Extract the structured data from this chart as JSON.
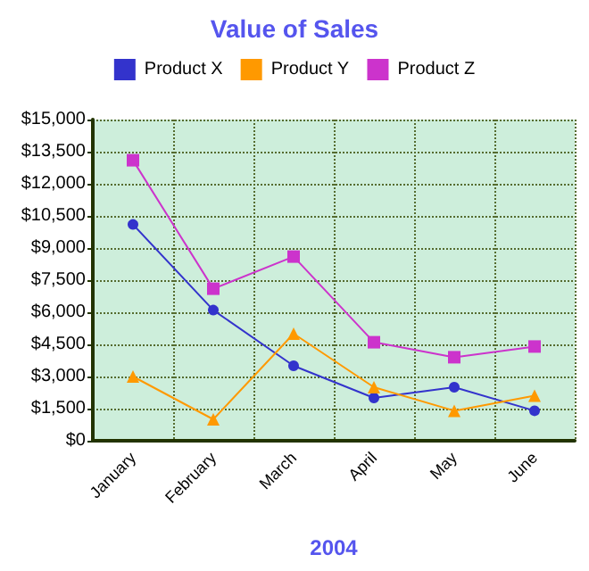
{
  "chart_data": {
    "type": "line",
    "title": "Value of Sales",
    "xlabel": "2004",
    "categories": [
      "January",
      "February",
      "March",
      "April",
      "May",
      "June"
    ],
    "series": [
      {
        "name": "Product X",
        "color": "#3333cc",
        "marker": "circle",
        "values": [
          10100,
          6100,
          3500,
          2000,
          2500,
          1400
        ]
      },
      {
        "name": "Product Y",
        "color": "#ff9900",
        "marker": "triangle",
        "values": [
          3000,
          1000,
          5000,
          2500,
          1400,
          2100
        ]
      },
      {
        "name": "Product Z",
        "color": "#cc33cc",
        "marker": "square",
        "values": [
          13100,
          7100,
          8600,
          4600,
          3900,
          4400
        ]
      }
    ],
    "ylim": [
      0,
      15000
    ],
    "yticks": [
      {
        "value": 0,
        "label": "$0"
      },
      {
        "value": 1500,
        "label": "$1,500"
      },
      {
        "value": 3000,
        "label": "$3,000"
      },
      {
        "value": 4500,
        "label": "$4,500"
      },
      {
        "value": 6000,
        "label": "$6,000"
      },
      {
        "value": 7500,
        "label": "$7,500"
      },
      {
        "value": 9000,
        "label": "$9,000"
      },
      {
        "value": 10500,
        "label": "$10,500"
      },
      {
        "value": 12000,
        "label": "$12,000"
      },
      {
        "value": 13500,
        "label": "$13,500"
      },
      {
        "value": 15000,
        "label": "$15,000"
      }
    ],
    "grid": true,
    "legend": "top",
    "line_style": "solid"
  }
}
